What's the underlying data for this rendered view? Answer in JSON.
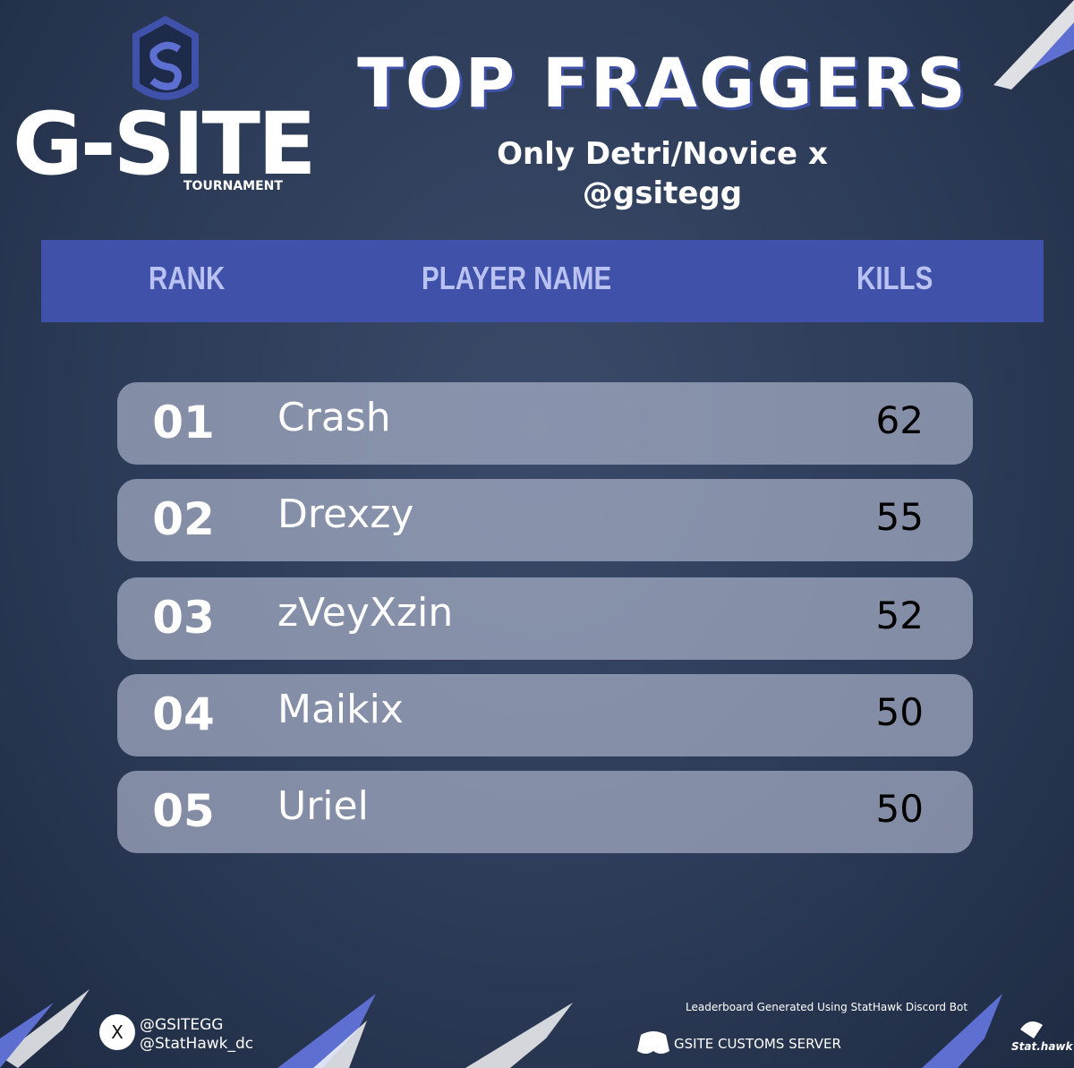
{
  "logo": {
    "name": "G-SITE",
    "tagline": "TOURNAMENT"
  },
  "header": {
    "title": "TOP FRAGGERS",
    "subtitle_lines": [
      "Only Detri/Novice x",
      "@gsitegg"
    ]
  },
  "table": {
    "columns": [
      "RANK",
      "PLAYER NAME",
      "KILLS"
    ],
    "rows": [
      [
        "01",
        "Crash",
        "62"
      ],
      [
        "02",
        "Drexzy",
        "55"
      ],
      [
        "03",
        "zVeyXzin",
        "52"
      ],
      [
        "04",
        "Maikix",
        "50"
      ],
      [
        "05",
        "Uriel",
        "50"
      ]
    ]
  },
  "footer": {
    "handles": [
      "@GSITEGG",
      "@StatHawk_dc"
    ],
    "credit": "Leaderboard Generated Using StatHawk Discord Bot",
    "server": "GSITE CUSTOMS SERVER",
    "brand": "Stat.hawk"
  }
}
